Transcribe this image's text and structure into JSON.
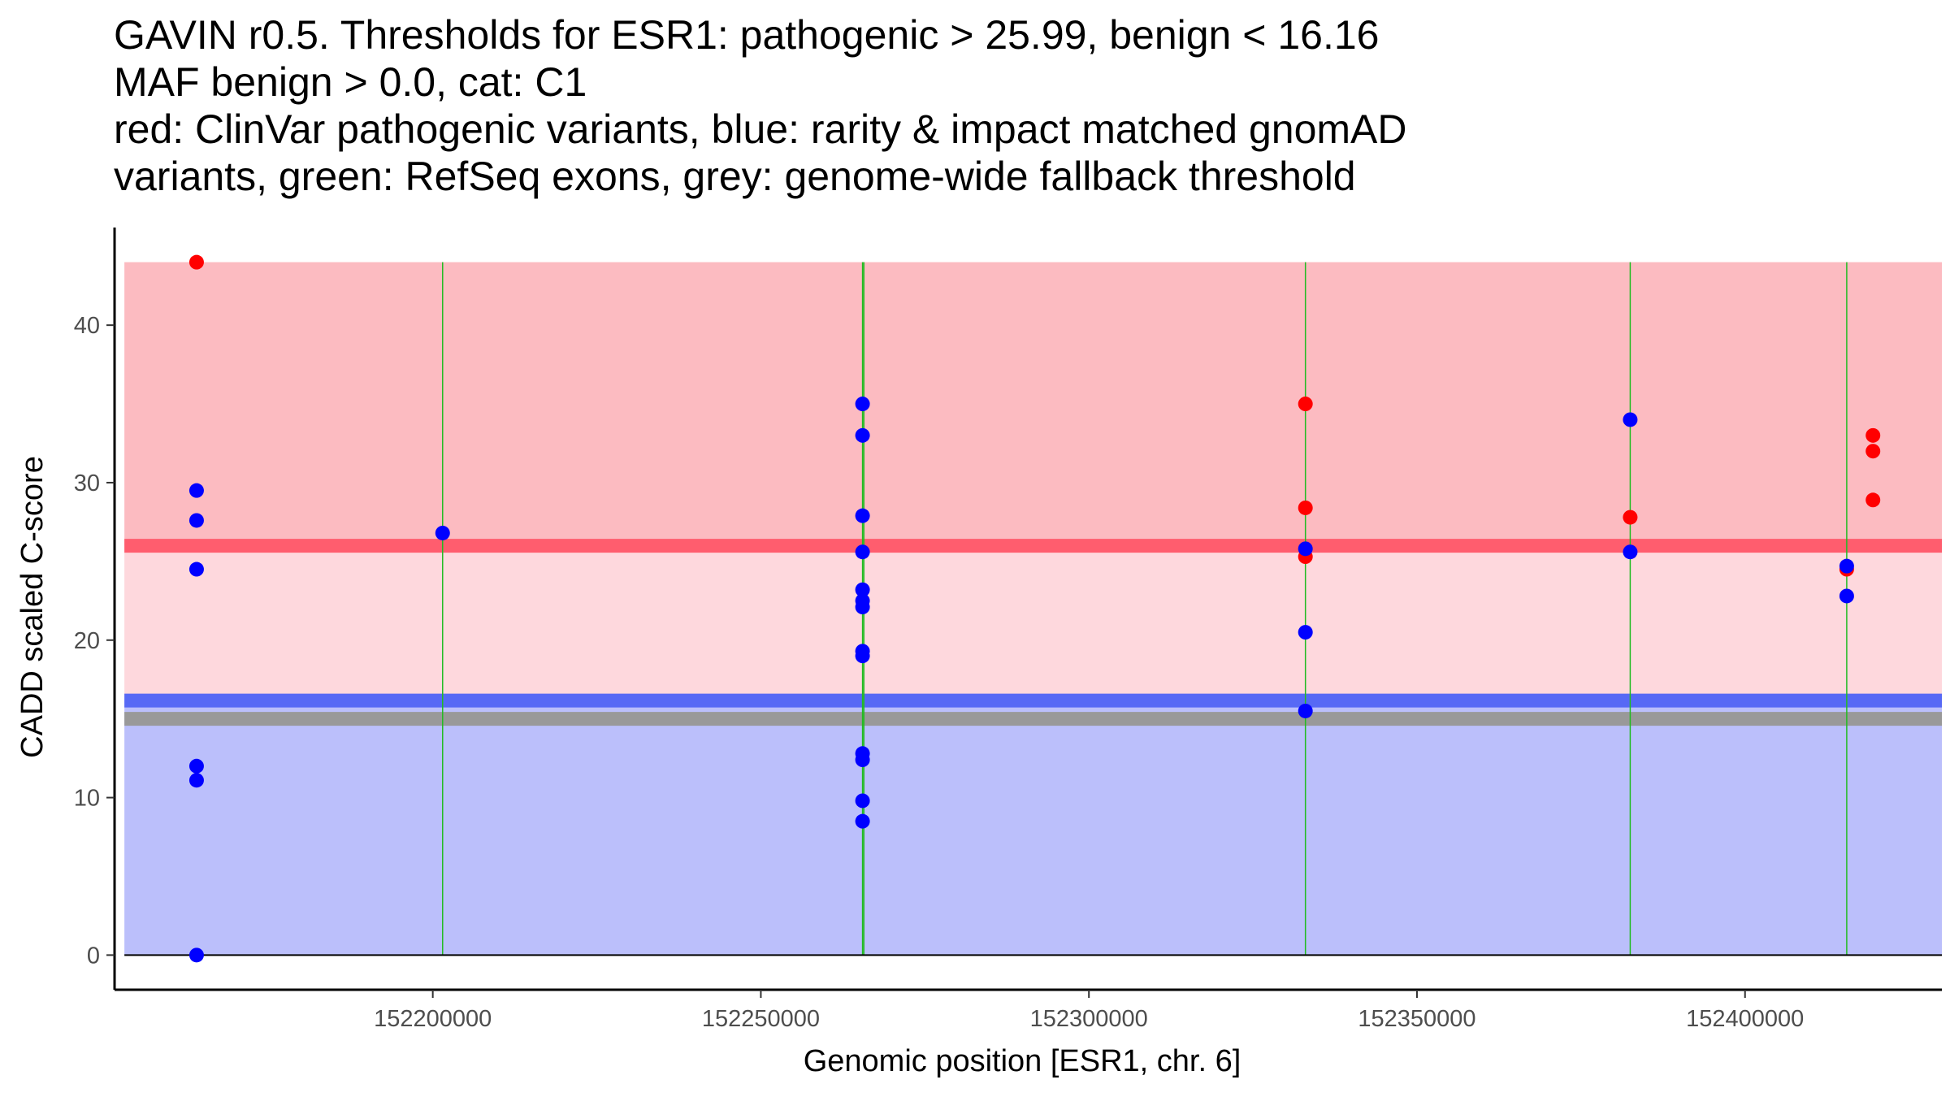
{
  "chart_data": {
    "type": "scatter",
    "title_lines": [
      "GAVIN r0.5. Thresholds for ESR1: pathogenic > 25.99, benign < 16.16",
      "MAF benign > 0.0, cat: C1",
      "red: ClinVar pathogenic variants, blue: rarity & impact matched gnomAD",
      "variants, green: RefSeq exons, grey: genome-wide fallback threshold"
    ],
    "xlabel": "Genomic position [ESR1, chr. 6]",
    "ylabel": "CADD scaled C-score",
    "xlim": [
      152151500,
      152430000
    ],
    "ylim": [
      -2.2,
      46.2
    ],
    "x_ticks": [
      152200000,
      152250000,
      152300000,
      152350000,
      152400000
    ],
    "x_tick_labels": [
      "152200000",
      "152250000",
      "152300000",
      "152350000",
      "152400000"
    ],
    "y_ticks": [
      0,
      10,
      20,
      30,
      40
    ],
    "y_tick_labels": [
      "0",
      "10",
      "20",
      "30",
      "40"
    ],
    "colors": {
      "pathogenic_region": "#fcbbc1",
      "uncertain_region": "#fed8dd",
      "benign_region": "#bbbffb",
      "pathogenic_threshold": "#ff5d6e",
      "benign_threshold": "#5769f5",
      "fallback_threshold": "#999999",
      "exon": "#22bb22",
      "pathogenic_point": "#ff0000",
      "benign_point": "#0000ff"
    },
    "regions": {
      "x_range": [
        152153000,
        152430000
      ],
      "pathogenic": [
        25.99,
        44
      ],
      "uncertain": [
        16.16,
        25.99
      ],
      "benign": [
        0,
        16.16
      ]
    },
    "thresholds": {
      "pathogenic": 25.99,
      "benign": 16.16,
      "fallback": 15.0
    },
    "exons": [
      152201500,
      152265500,
      152265700,
      152333000,
      152382500,
      152415500
    ],
    "series": [
      {
        "name": "ClinVar pathogenic",
        "color": "#ff0000",
        "points": [
          {
            "x": 152164000,
            "y": 44.0
          },
          {
            "x": 152333000,
            "y": 35.0
          },
          {
            "x": 152333000,
            "y": 28.4
          },
          {
            "x": 152333000,
            "y": 25.3
          },
          {
            "x": 152382500,
            "y": 27.8
          },
          {
            "x": 152415500,
            "y": 24.5
          },
          {
            "x": 152419500,
            "y": 33.0
          },
          {
            "x": 152419500,
            "y": 32.0
          },
          {
            "x": 152419500,
            "y": 28.9
          }
        ]
      },
      {
        "name": "gnomAD matched",
        "color": "#0000ff",
        "points": [
          {
            "x": 152164000,
            "y": 29.5
          },
          {
            "x": 152164000,
            "y": 27.6
          },
          {
            "x": 152164000,
            "y": 24.5
          },
          {
            "x": 152164000,
            "y": 12.0
          },
          {
            "x": 152164000,
            "y": 11.1
          },
          {
            "x": 152164000,
            "y": 0.0
          },
          {
            "x": 152201500,
            "y": 26.8
          },
          {
            "x": 152265500,
            "y": 35.0
          },
          {
            "x": 152265500,
            "y": 33.0
          },
          {
            "x": 152265500,
            "y": 27.9
          },
          {
            "x": 152265500,
            "y": 25.6
          },
          {
            "x": 152265500,
            "y": 23.2
          },
          {
            "x": 152265500,
            "y": 22.5
          },
          {
            "x": 152265500,
            "y": 22.1
          },
          {
            "x": 152265500,
            "y": 19.3
          },
          {
            "x": 152265500,
            "y": 19.0
          },
          {
            "x": 152265500,
            "y": 12.8
          },
          {
            "x": 152265500,
            "y": 12.4
          },
          {
            "x": 152265500,
            "y": 9.8
          },
          {
            "x": 152265500,
            "y": 8.5
          },
          {
            "x": 152333000,
            "y": 25.8
          },
          {
            "x": 152333000,
            "y": 20.5
          },
          {
            "x": 152333000,
            "y": 15.5
          },
          {
            "x": 152382500,
            "y": 34.0
          },
          {
            "x": 152382500,
            "y": 25.6
          },
          {
            "x": 152415500,
            "y": 24.7
          },
          {
            "x": 152415500,
            "y": 22.8
          }
        ]
      }
    ]
  }
}
